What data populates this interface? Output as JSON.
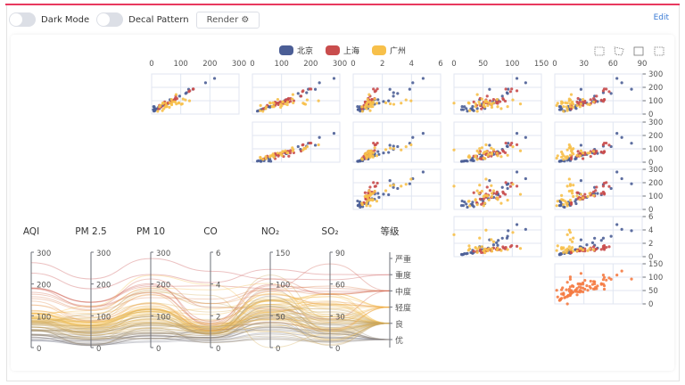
{
  "toolbar": {
    "dark_mode_label": "Dark Mode",
    "decal_label": "Decal Pattern",
    "render_label": "Render",
    "edit_label": "Edit"
  },
  "legend": [
    {
      "name": "北京",
      "color": "#4b5e96"
    },
    {
      "name": "上海",
      "color": "#c94d4d"
    },
    {
      "name": "广州",
      "color": "#f7c04a"
    }
  ],
  "chart_data": {
    "type": "scatter-matrix + parallel",
    "dimensions": [
      "AQI",
      "PM 2.5",
      "PM 10",
      "CO",
      "NO₂",
      "SO₂",
      "等级"
    ],
    "ranges": [
      [
        0,
        300
      ],
      [
        0,
        300
      ],
      [
        0,
        300
      ],
      [
        0,
        6
      ],
      [
        0,
        150
      ],
      [
        0,
        90
      ]
    ],
    "ticks": [
      [
        0,
        100,
        200,
        300
      ],
      [
        0,
        100,
        200,
        300
      ],
      [
        0,
        100,
        200,
        300
      ],
      [
        0,
        2,
        4,
        6
      ],
      [
        0,
        50,
        100,
        150
      ],
      [
        0,
        30,
        60,
        90
      ]
    ],
    "grades": [
      "优",
      "良",
      "轻度",
      "中度",
      "重度",
      "严重"
    ],
    "diagonal_color": "#f57b42",
    "visual_map_colors": [
      "#4b5e96",
      "#f7c04a",
      "#c94d4d"
    ],
    "series": [
      {
        "name": "北京",
        "data": [
          [
            55,
            9,
            56,
            0.46,
            18,
            6,
            "良"
          ],
          [
            25,
            11,
            21,
            0.65,
            34,
            9,
            "优"
          ],
          [
            56,
            7,
            63,
            0.3,
            14,
            5,
            "良"
          ],
          [
            33,
            7,
            29,
            0.33,
            16,
            6,
            "优"
          ],
          [
            42,
            24,
            44,
            0.76,
            40,
            16,
            "优"
          ],
          [
            82,
            58,
            90,
            1.77,
            68,
            33,
            "良"
          ],
          [
            74,
            49,
            77,
            1.46,
            48,
            27,
            "良"
          ],
          [
            78,
            55,
            80,
            1.29,
            59,
            29,
            "良"
          ],
          [
            267,
            216,
            280,
            4.8,
            108,
            64,
            "重度"
          ],
          [
            185,
            127,
            216,
            2.52,
            61,
            27,
            "中度"
          ],
          [
            39,
            19,
            38,
            0.57,
            31,
            15,
            "优"
          ],
          [
            41,
            11,
            40,
            0.43,
            21,
            7,
            "优"
          ],
          [
            64,
            38,
            74,
            1.04,
            46,
            22,
            "良"
          ],
          [
            108,
            79,
            120,
            1.7,
            75,
            41,
            "轻度"
          ],
          [
            108,
            63,
            116,
            1.48,
            44,
            26,
            "轻度"
          ],
          [
            33,
            6,
            29,
            0.34,
            13,
            5,
            "优"
          ],
          [
            94,
            66,
            119,
            1.29,
            67,
            44,
            "良"
          ],
          [
            186,
            142,
            192,
            3.88,
            93,
            79,
            "中度"
          ],
          [
            57,
            31,
            54,
            0.96,
            32,
            14,
            "良"
          ],
          [
            22,
            8,
            17,
            0.48,
            23,
            10,
            "优"
          ],
          [
            39,
            15,
            36,
            0.61,
            29,
            13,
            "优"
          ],
          [
            94,
            69,
            114,
            2.08,
            73,
            39,
            "良"
          ],
          [
            99,
            73,
            110,
            2.43,
            76,
            48,
            "良"
          ],
          [
            31,
            12,
            30,
            0.5,
            32,
            16,
            "优"
          ],
          [
            42,
            27,
            43,
            1,
            53,
            22,
            "优"
          ],
          [
            154,
            117,
            157,
            3.05,
            92,
            58,
            "中度"
          ],
          [
            234,
            185,
            230,
            4.09,
            123,
            69,
            "重度"
          ],
          [
            160,
            120,
            186,
            2.77,
            91,
            50,
            "中度"
          ],
          [
            134,
            96,
            165,
            2.76,
            83,
            41,
            "轻度"
          ],
          [
            52,
            24,
            60,
            1.03,
            50,
            21,
            "良"
          ]
        ]
      },
      {
        "name": "上海",
        "data": [
          [
            91,
            45,
            125,
            0.82,
            34,
            23,
            "良"
          ],
          [
            65,
            27,
            78,
            0.86,
            45,
            29,
            "良"
          ],
          [
            83,
            60,
            84,
            1.09,
            73,
            27,
            "良"
          ],
          [
            109,
            81,
            121,
            1.28,
            68,
            51,
            "轻度"
          ],
          [
            106,
            77,
            114,
            1.07,
            55,
            51,
            "轻度"
          ],
          [
            89,
            65,
            78,
            0.86,
            51,
            26,
            "良"
          ],
          [
            53,
            33,
            47,
            0.64,
            50,
            17,
            "良"
          ],
          [
            80,
            55,
            80,
            1.01,
            75,
            24,
            "良"
          ],
          [
            117,
            81,
            124,
            1.03,
            45,
            24,
            "轻度"
          ],
          [
            99,
            71,
            142,
            1.1,
            62,
            42,
            "良"
          ],
          [
            95,
            69,
            130,
            1.28,
            74,
            50,
            "良"
          ],
          [
            116,
            87,
            131,
            1.47,
            84,
            40,
            "轻度"
          ],
          [
            108,
            80,
            121,
            1.3,
            85,
            37,
            "轻度"
          ],
          [
            134,
            83,
            167,
            1.16,
            57,
            43,
            "轻度"
          ],
          [
            79,
            43,
            107,
            1.05,
            59,
            37,
            "良"
          ],
          [
            71,
            46,
            89,
            0.86,
            64,
            25,
            "良"
          ],
          [
            97,
            71,
            113,
            1.17,
            88,
            31,
            "良"
          ],
          [
            84,
            57,
            91,
            0.85,
            55,
            31,
            "良"
          ],
          [
            87,
            63,
            101,
            0.9,
            56,
            41,
            "良"
          ],
          [
            104,
            77,
            119,
            1.09,
            73,
            48,
            "轻度"
          ],
          [
            168,
            128,
            172,
            1.49,
            97,
            56,
            "中度"
          ],
          [
            65,
            45,
            51,
            0.74,
            39,
            17,
            "良"
          ],
          [
            39,
            24,
            38,
            0.61,
            47,
            17,
            "优"
          ],
          [
            93,
            68,
            96,
            1.05,
            79,
            29,
            "良"
          ],
          [
            188,
            143,
            197,
            1.66,
            99,
            51,
            "中度"
          ],
          [
            174,
            131,
            174,
            1.55,
            108,
            50,
            "中度"
          ],
          [
            187,
            143,
            201,
            1.39,
            89,
            53,
            "中度"
          ]
        ]
      },
      {
        "name": "广州",
        "data": [
          [
            26,
            37,
            27,
            1.163,
            27,
            13,
            "优"
          ],
          [
            85,
            62,
            71,
            1.195,
            60,
            8,
            "良"
          ],
          [
            78,
            38,
            74,
            1.363,
            37,
            7,
            "良"
          ],
          [
            21,
            21,
            36,
            0.634,
            40,
            9,
            "优"
          ],
          [
            41,
            42,
            46,
            0.915,
            81,
            13,
            "优"
          ],
          [
            56,
            52,
            69,
            1.067,
            92,
            16,
            "良"
          ],
          [
            64,
            30,
            28,
            0.924,
            51,
            2,
            "良"
          ],
          [
            55,
            48,
            74,
            1.236,
            75,
            26,
            "良"
          ],
          [
            76,
            85,
            113,
            1.237,
            114,
            27,
            "良"
          ],
          [
            91,
            81,
            104,
            1.041,
            56,
            40,
            "良"
          ],
          [
            84,
            39,
            60,
            0.964,
            25,
            11,
            "良"
          ],
          [
            64,
            51,
            101,
            0.862,
            58,
            23,
            "良"
          ],
          [
            70,
            69,
            120,
            1.198,
            65,
            36,
            "良"
          ],
          [
            77,
            105,
            178,
            2.549,
            64,
            16,
            "良"
          ],
          [
            109,
            68,
            87,
            0.996,
            74,
            29,
            "轻度"
          ],
          [
            73,
            68,
            97,
            0.905,
            51,
            34,
            "良"
          ],
          [
            54,
            27,
            47,
            0.592,
            53,
            12,
            "良"
          ],
          [
            51,
            61,
            97,
            0.811,
            65,
            19,
            "良"
          ],
          [
            91,
            71,
            121,
            1.374,
            43,
            18,
            "良"
          ],
          [
            73,
            102,
            182,
            2.787,
            44,
            19,
            "良"
          ],
          [
            84,
            94,
            140,
            2.238,
            68,
            18,
            "良"
          ],
          [
            93,
            77,
            104,
            1.165,
            53,
            7,
            "良"
          ],
          [
            99,
            130,
            227,
            3.97,
            55,
            15,
            "良"
          ],
          [
            146,
            84,
            139,
            1.094,
            40,
            17,
            "轻度"
          ],
          [
            113,
            108,
            137,
            1.481,
            48,
            15,
            "轻度"
          ],
          [
            81,
            48,
            62,
            1.619,
            26,
            3,
            "良"
          ],
          [
            56,
            48,
            68,
            1.336,
            37,
            9,
            "良"
          ],
          [
            82,
            92,
            174,
            3.29,
            0,
            13,
            "良"
          ],
          [
            106,
            116,
            188,
            3.628,
            101,
            16,
            "轻度"
          ]
        ]
      }
    ]
  }
}
